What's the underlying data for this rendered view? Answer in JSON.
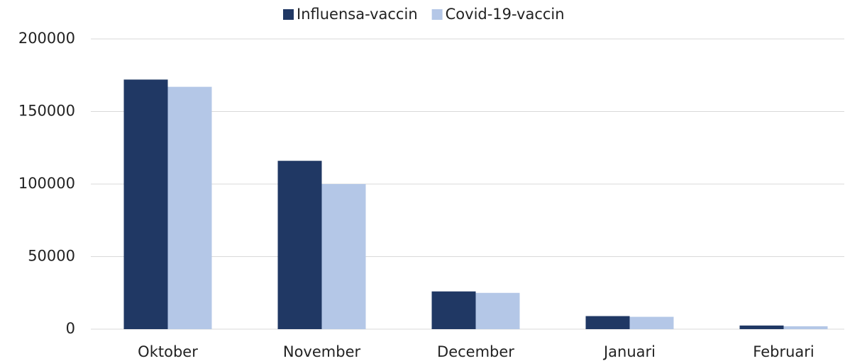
{
  "chart_data": {
    "type": "bar",
    "categories": [
      "Oktober",
      "November",
      "December",
      "Januari",
      "Februari"
    ],
    "series": [
      {
        "name": "Influensa-vaccin",
        "color": "#203864",
        "values": [
          172000,
          116000,
          26000,
          9000,
          2500
        ]
      },
      {
        "name": "Covid-19-vaccin",
        "color": "#b4c7e7",
        "values": [
          167000,
          100000,
          25000,
          8500,
          2000
        ]
      }
    ],
    "ylim": [
      0,
      200000
    ],
    "yticks": [
      0,
      50000,
      100000,
      150000,
      200000
    ],
    "grid": true,
    "legend": "top"
  }
}
